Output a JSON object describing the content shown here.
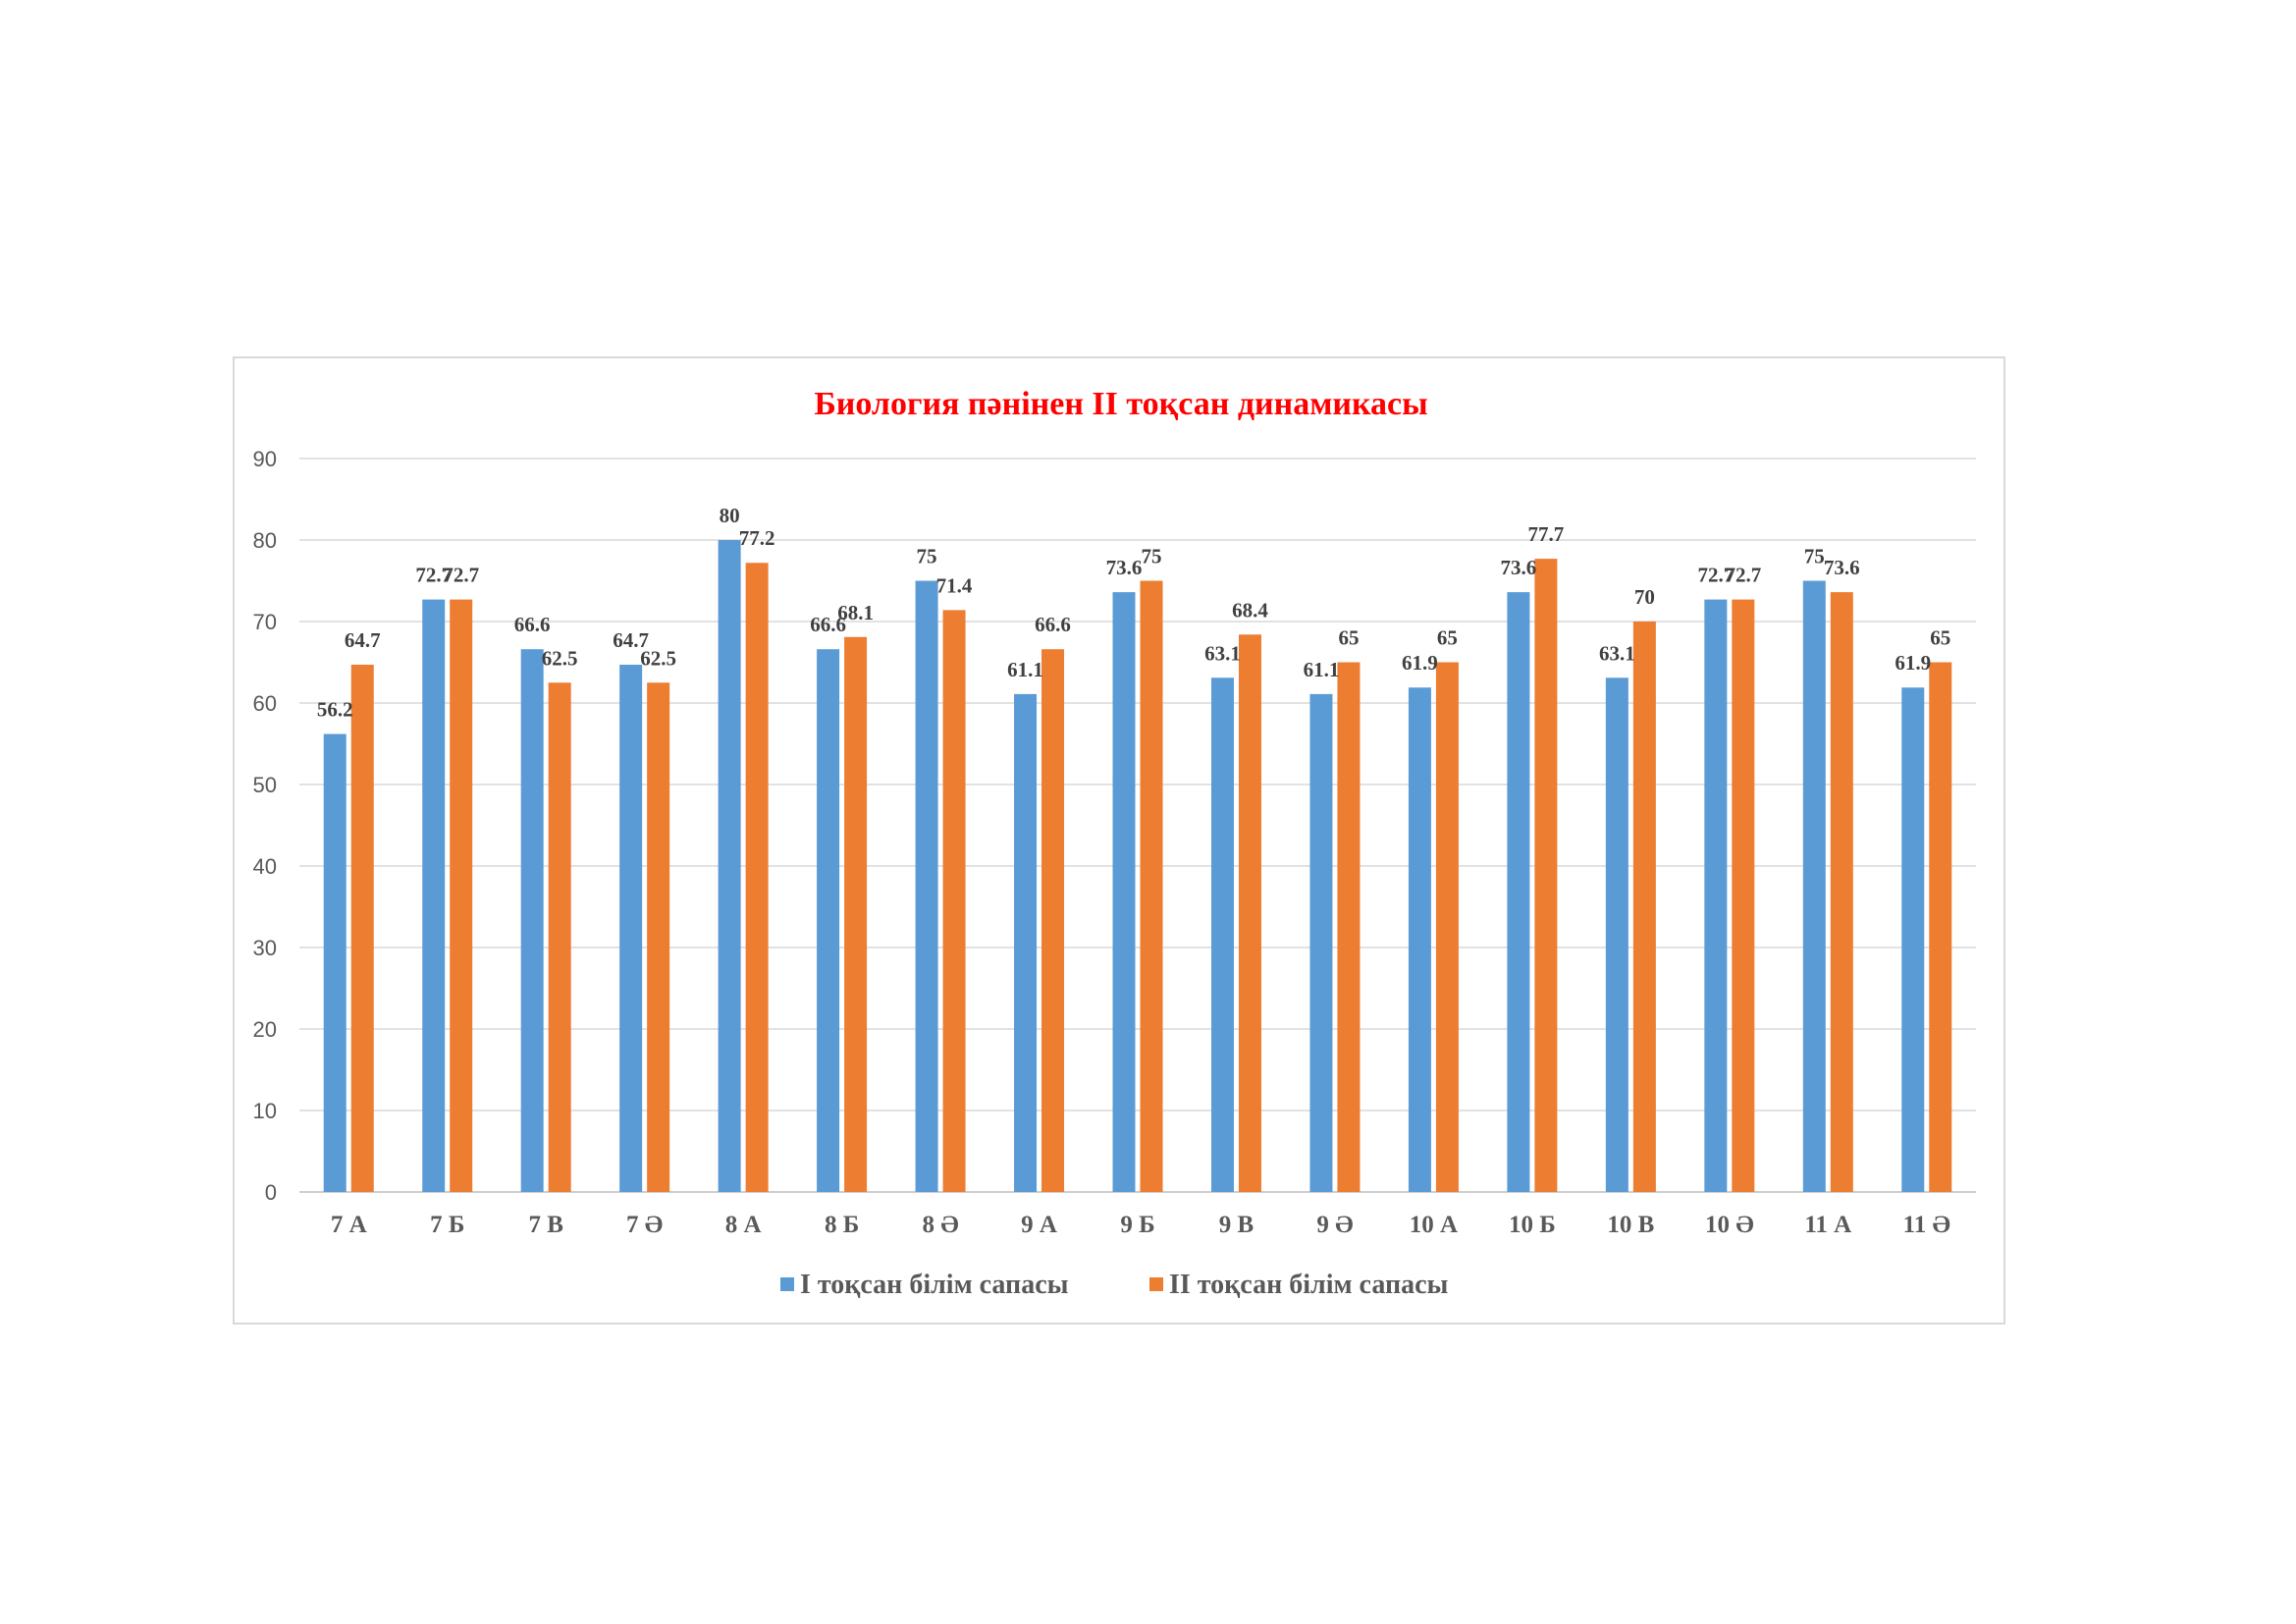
{
  "chart_data": {
    "type": "bar",
    "title": "Биология пәнінен ІІ тоқсан динамикасы",
    "xlabel": "",
    "ylabel": "",
    "ylim": [
      0,
      90
    ],
    "yticks": [
      0,
      10,
      20,
      30,
      40,
      50,
      60,
      70,
      80,
      90
    ],
    "grid": true,
    "legend_position": "bottom",
    "categories": [
      "7 А",
      "7 Б",
      "7 В",
      "7 Ә",
      "8 А",
      "8 Б",
      "8 Ә",
      "9 А",
      "9 Б",
      "9 В",
      "9 Ә",
      "10 А",
      "10 Б",
      "10 В",
      "10 Ә",
      "11 А",
      "11 Ә"
    ],
    "series": [
      {
        "name": "І тоқсан білім сапасы",
        "color": "#5b9bd5",
        "values": [
          56.2,
          72.7,
          66.6,
          64.7,
          80,
          66.6,
          75,
          61.1,
          73.6,
          63.1,
          61.1,
          61.9,
          73.6,
          63.1,
          72.7,
          75,
          61.9
        ]
      },
      {
        "name": "ІІ тоқсан білім сапасы",
        "color": "#ed7d31",
        "values": [
          64.7,
          72.7,
          62.5,
          62.5,
          77.2,
          68.1,
          71.4,
          66.6,
          75,
          68.4,
          65,
          65,
          77.7,
          70,
          72.7,
          73.6,
          65
        ]
      }
    ]
  }
}
